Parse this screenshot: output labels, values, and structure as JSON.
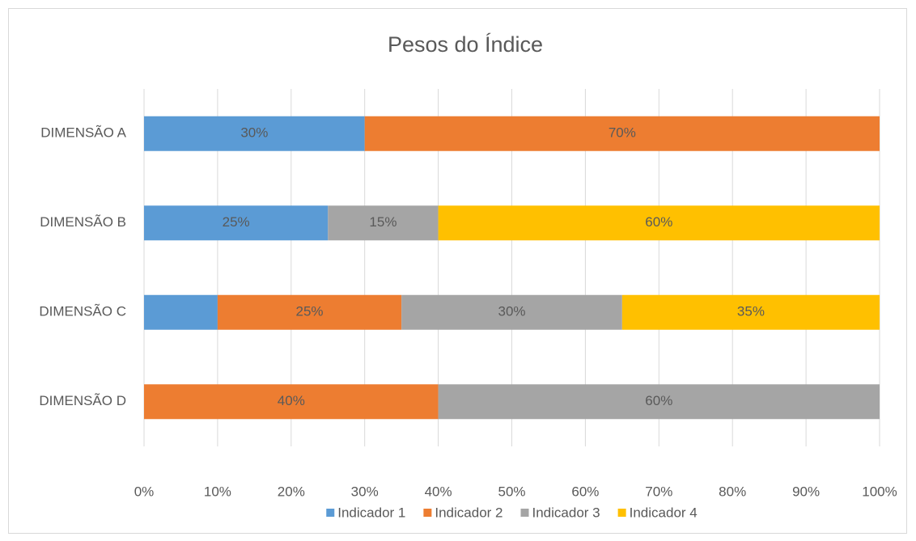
{
  "chart_data": {
    "type": "stacked-bar-horizontal",
    "title": "Pesos do Índice",
    "categories": [
      "DIMENSÃO A",
      "DIMENSÃO B",
      "DIMENSÃO C",
      "DIMENSÃO D"
    ],
    "series": [
      {
        "name": "Indicador 1",
        "color": "#5b9bd5",
        "values": [
          30,
          25,
          10,
          null
        ],
        "value_labels": [
          "30%",
          "25%",
          null,
          null
        ]
      },
      {
        "name": "Indicador 2",
        "color": "#ed7d31",
        "values": [
          70,
          null,
          25,
          40
        ],
        "value_labels": [
          "70%",
          null,
          "25%",
          "40%"
        ]
      },
      {
        "name": "Indicador 3",
        "color": "#a5a5a5",
        "values": [
          null,
          15,
          30,
          60
        ],
        "value_labels": [
          null,
          "15%",
          "30%",
          "60%"
        ]
      },
      {
        "name": "Indicador 4",
        "color": "#ffc000",
        "values": [
          null,
          60,
          35,
          null
        ],
        "value_labels": [
          null,
          "60%",
          "35%",
          null
        ]
      }
    ],
    "xlim": [
      0,
      100
    ],
    "xticks": [
      {
        "value": 0,
        "label": "0%"
      },
      {
        "value": 10,
        "label": "10%"
      },
      {
        "value": 20,
        "label": "20%"
      },
      {
        "value": 30,
        "label": "30%"
      },
      {
        "value": 40,
        "label": "40%"
      },
      {
        "value": 50,
        "label": "50%"
      },
      {
        "value": 60,
        "label": "60%"
      },
      {
        "value": 70,
        "label": "70%"
      },
      {
        "value": 80,
        "label": "80%"
      },
      {
        "value": 90,
        "label": "90%"
      },
      {
        "value": 100,
        "label": "100%"
      }
    ],
    "grid": true,
    "legend": "bottom"
  }
}
